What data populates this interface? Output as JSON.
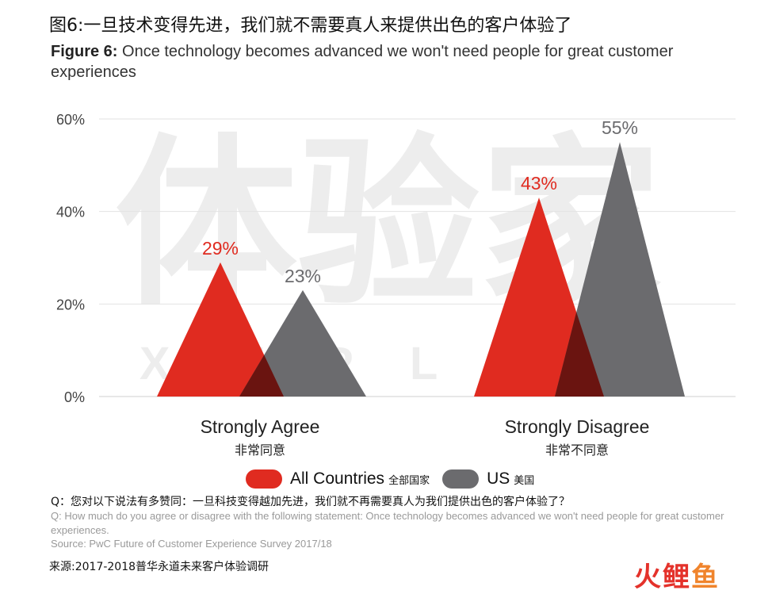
{
  "header": {
    "title_cn": "图6:一旦技术变得先进，我们就不需要真人来提供出色的客户体验了",
    "figure_label": "Figure 6:",
    "title_en": "Once technology becomes advanced we won't need people for great customer experiences"
  },
  "chart_data": {
    "type": "area",
    "categories": [
      "Strongly Agree",
      "Strongly Disagree"
    ],
    "categories_cn": [
      "非常同意",
      "非常不同意"
    ],
    "series": [
      {
        "name": "All Countries",
        "name_cn": "全部国家",
        "values": [
          29,
          43
        ],
        "color": "#e02b20"
      },
      {
        "name": "US",
        "name_cn": "美国",
        "values": [
          23,
          55
        ],
        "color": "#6b6b6e"
      }
    ],
    "data_labels": [
      [
        "29%",
        "43%"
      ],
      [
        "23%",
        "55%"
      ]
    ],
    "yticks": [
      "0%",
      "20%",
      "40%",
      "60%"
    ],
    "ylim": [
      0,
      60
    ],
    "grid": true,
    "legend_position": "bottom",
    "overlap_color": "#6a1410"
  },
  "watermark": {
    "cn": "体验家",
    "en": "X M P L U S"
  },
  "footer": {
    "question_cn": "Q：您对以下说法有多赞同：一旦科技变得越加先进，我们就不再需要真人为我们提供出色的客户体验了？",
    "question_en": "Q: How much do you agree or disagree with the following statement: Once technology becomes advanced we won't need people for great customer experiences.",
    "source_en": "Source: PwC Future of Customer Experience Survey 2017/18",
    "source_cn": "来源:2017-2018普华永道未来客户体验调研"
  },
  "logo": {
    "char1": "火",
    "char2": "鲤",
    "char3": "鱼"
  }
}
